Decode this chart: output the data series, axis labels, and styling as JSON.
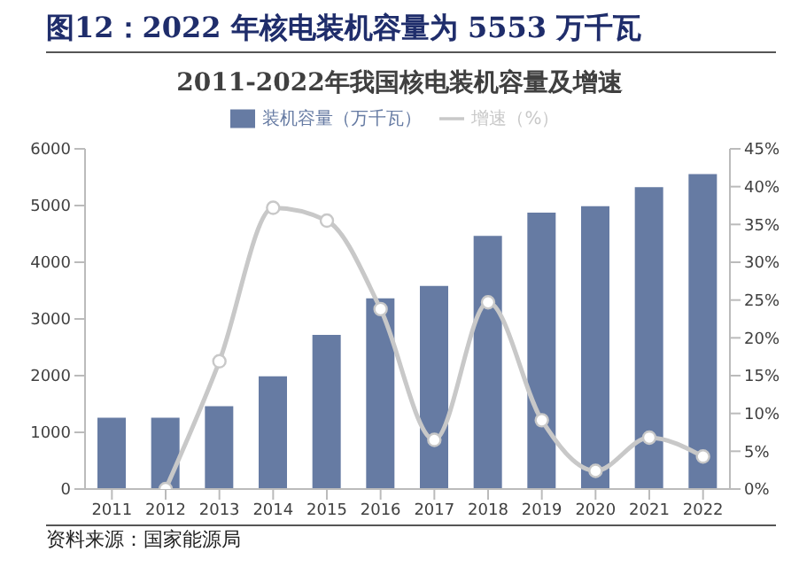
{
  "chart_data": {
    "type": "bar",
    "title": "图12：2022 年核电装机容量为 5553 万千瓦",
    "subtitle": "2011-2022年我国核电装机容量及增速",
    "categories": [
      "2011",
      "2012",
      "2013",
      "2014",
      "2015",
      "2016",
      "2017",
      "2018",
      "2019",
      "2020",
      "2021",
      "2022"
    ],
    "series": [
      {
        "name": "装机容量（万千瓦）",
        "color": "#667ba3",
        "values": [
          1257,
          1257,
          1461,
          1988,
          2717,
          3364,
          3582,
          4466,
          4874,
          4989,
          5326,
          5553
        ]
      },
      {
        "name": "增速（%）",
        "type": "line",
        "axis": "y2",
        "color": "#c8c8c8",
        "marker": "circle",
        "values": [
          null,
          0,
          16.9,
          37.2,
          35.5,
          23.8,
          6.5,
          24.7,
          9.1,
          2.4,
          6.8,
          4.3
        ]
      }
    ],
    "ylim": [
      0,
      6000
    ],
    "yticks": [
      0,
      1000,
      2000,
      3000,
      4000,
      5000,
      6000
    ],
    "y2lim": [
      0,
      45
    ],
    "y2ticks": [
      {
        "value": 0,
        "label": "0%"
      },
      {
        "value": 5,
        "label": "5%"
      },
      {
        "value": 10,
        "label": "10%"
      },
      {
        "value": 15,
        "label": "15%"
      },
      {
        "value": 20,
        "label": "20%"
      },
      {
        "value": 25,
        "label": "25%"
      },
      {
        "value": 30,
        "label": "30%"
      },
      {
        "value": 35,
        "label": "35%"
      },
      {
        "value": 40,
        "label": "40%"
      },
      {
        "value": 45,
        "label": "45%"
      }
    ],
    "legend": "top",
    "grid": false,
    "annotations": [
      "资料来源：国家能源局"
    ]
  }
}
